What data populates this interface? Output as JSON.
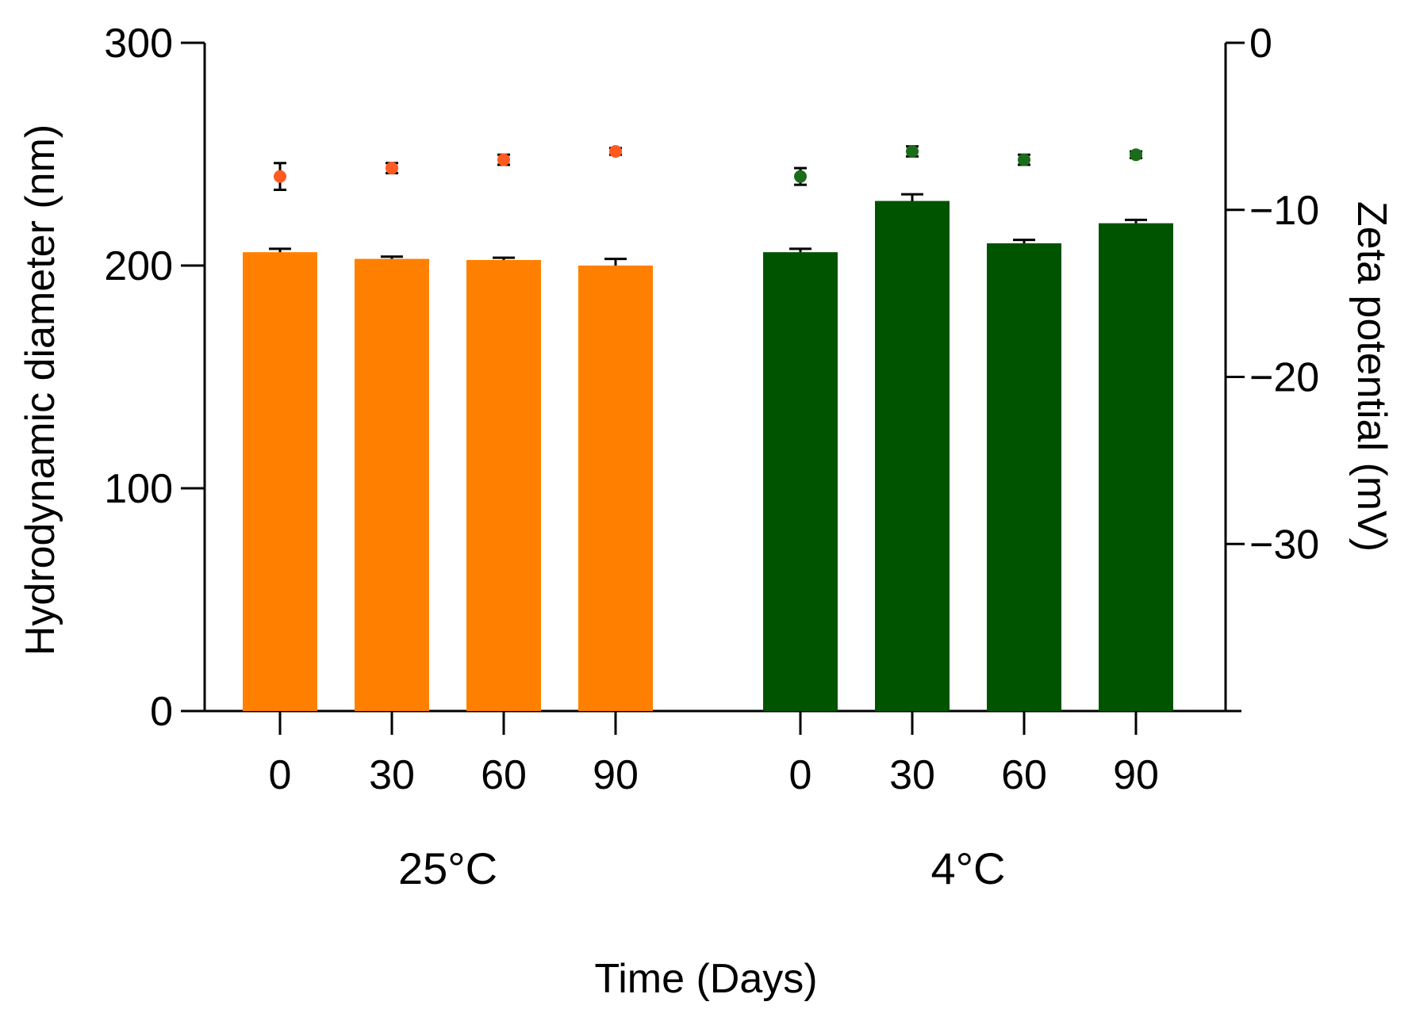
{
  "chart_data": {
    "type": "bar",
    "title": "",
    "xlabel": "Time (Days)",
    "ylabel": "Hydrodynamic diameter (nm)",
    "y2label": "Zeta potential (mV)",
    "ylim": [
      0,
      300
    ],
    "y2lim": [
      -40,
      0
    ],
    "yticks": [
      "0",
      "100",
      "200",
      "300"
    ],
    "y2ticks": [
      "0",
      "−10",
      "−20",
      "−30"
    ],
    "groups": [
      {
        "name": "25°C",
        "color": "#ff8000",
        "categories": [
          "0",
          "30",
          "60",
          "90"
        ],
        "diameter": [
          206,
          203,
          202.5,
          200
        ],
        "diameter_err": [
          1.5,
          1,
          1,
          3
        ],
        "zeta": [
          -8,
          -7.5,
          -7,
          -6.5
        ],
        "zeta_err": [
          0.8,
          0.3,
          0.3,
          0.2
        ],
        "zeta_color": "#ff5a1f"
      },
      {
        "name": "4°C",
        "color": "#005400",
        "categories": [
          "0",
          "30",
          "60",
          "90"
        ],
        "diameter": [
          206,
          229,
          210,
          219
        ],
        "diameter_err": [
          1.5,
          3,
          1.5,
          1.5
        ],
        "zeta": [
          -8,
          -6.5,
          -7,
          -6.7
        ],
        "zeta_err": [
          0.5,
          0.3,
          0.3,
          0.2
        ],
        "zeta_color": "#1a6b1a"
      }
    ]
  }
}
